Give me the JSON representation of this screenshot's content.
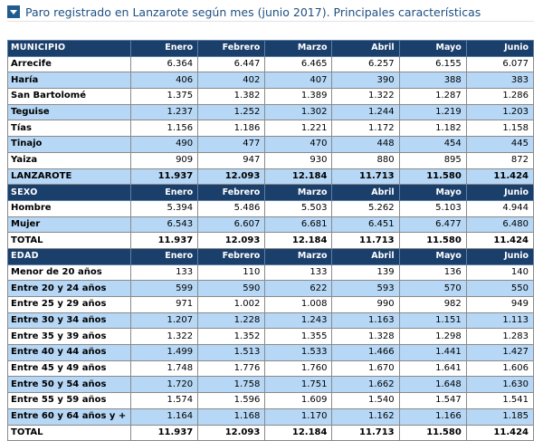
{
  "title": "Paro registrado en Lanzarote según mes (junio 2017). Principales características",
  "columns": [
    "Enero",
    "Febrero",
    "Marzo",
    "Abril",
    "Mayo",
    "Junio"
  ],
  "sections": [
    {
      "header": "MUNICIPIO",
      "rows": [
        {
          "label": "Arrecife",
          "values": [
            "6.364",
            "6.447",
            "6.465",
            "6.257",
            "6.155",
            "6.077"
          ]
        },
        {
          "label": "Haría",
          "values": [
            "406",
            "402",
            "407",
            "390",
            "388",
            "383"
          ]
        },
        {
          "label": "San Bartolomé",
          "values": [
            "1.375",
            "1.382",
            "1.389",
            "1.322",
            "1.287",
            "1.286"
          ]
        },
        {
          "label": "Teguise",
          "values": [
            "1.237",
            "1.252",
            "1.302",
            "1.244",
            "1.219",
            "1.203"
          ]
        },
        {
          "label": "Tías",
          "values": [
            "1.156",
            "1.186",
            "1.221",
            "1.172",
            "1.182",
            "1.158"
          ]
        },
        {
          "label": "Tinajo",
          "values": [
            "490",
            "477",
            "470",
            "448",
            "454",
            "445"
          ]
        },
        {
          "label": "Yaiza",
          "values": [
            "909",
            "947",
            "930",
            "880",
            "895",
            "872"
          ]
        }
      ],
      "total": {
        "label": "LANZAROTE",
        "values": [
          "11.937",
          "12.093",
          "12.184",
          "11.713",
          "11.580",
          "11.424"
        ]
      }
    },
    {
      "header": "SEXO",
      "rows": [
        {
          "label": "Hombre",
          "values": [
            "5.394",
            "5.486",
            "5.503",
            "5.262",
            "5.103",
            "4.944"
          ]
        },
        {
          "label": "Mujer",
          "values": [
            "6.543",
            "6.607",
            "6.681",
            "6.451",
            "6.477",
            "6.480"
          ]
        }
      ],
      "total": {
        "label": "TOTAL",
        "values": [
          "11.937",
          "12.093",
          "12.184",
          "11.713",
          "11.580",
          "11.424"
        ]
      }
    },
    {
      "header": "EDAD",
      "rows": [
        {
          "label": "Menor de 20 años",
          "values": [
            "133",
            "110",
            "133",
            "139",
            "136",
            "140"
          ]
        },
        {
          "label": "Entre 20 y 24 años",
          "values": [
            "599",
            "590",
            "622",
            "593",
            "570",
            "550"
          ]
        },
        {
          "label": "Entre 25 y 29 años",
          "values": [
            "971",
            "1.002",
            "1.008",
            "990",
            "982",
            "949"
          ]
        },
        {
          "label": "Entre 30 y 34 años",
          "values": [
            "1.207",
            "1.228",
            "1.243",
            "1.163",
            "1.151",
            "1.113"
          ]
        },
        {
          "label": "Entre 35 y 39 años",
          "values": [
            "1.322",
            "1.352",
            "1.355",
            "1.328",
            "1.298",
            "1.283"
          ]
        },
        {
          "label": "Entre 40 y 44 años",
          "values": [
            "1.499",
            "1.513",
            "1.533",
            "1.466",
            "1.441",
            "1.427"
          ]
        },
        {
          "label": "Entre 45 y 49 años",
          "values": [
            "1.748",
            "1.776",
            "1.760",
            "1.670",
            "1.641",
            "1.606"
          ]
        },
        {
          "label": "Entre 50 y 54 años",
          "values": [
            "1.720",
            "1.758",
            "1.751",
            "1.662",
            "1.648",
            "1.630"
          ]
        },
        {
          "label": "Entre 55 y 59 años",
          "values": [
            "1.574",
            "1.596",
            "1.609",
            "1.540",
            "1.547",
            "1.541"
          ]
        },
        {
          "label": "Entre 60 y 64 años y +",
          "values": [
            "1.164",
            "1.168",
            "1.170",
            "1.162",
            "1.166",
            "1.185"
          ]
        }
      ],
      "total": {
        "label": "TOTAL",
        "values": [
          "11.937",
          "12.093",
          "12.184",
          "11.713",
          "11.580",
          "11.424"
        ]
      }
    }
  ],
  "colors": {
    "header": "#1b3f6b",
    "stripe": "#b6d7f5",
    "title": "#1e4f82"
  },
  "icons": {
    "title": "triangle-down-icon"
  }
}
